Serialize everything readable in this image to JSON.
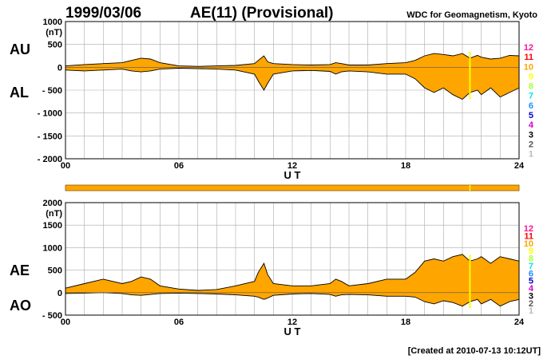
{
  "header": {
    "date": "1999/03/06",
    "title": "AE(11) (Provisional)",
    "source": "WDC for Geomagnetism, Kyoto"
  },
  "footer": {
    "created": "[Created at 2010-07-13 10:12UT]"
  },
  "colors": {
    "fill": "#ffa500",
    "outline": "#000000",
    "grid": "#aaaaaa",
    "marker": "#ffff00"
  },
  "station_legend": [
    {
      "label": "12",
      "color": "#ff1493"
    },
    {
      "label": "11",
      "color": "#ff0000"
    },
    {
      "label": "10",
      "color": "#ffa500"
    },
    {
      "label": "9",
      "color": "#ffff00"
    },
    {
      "label": "8",
      "color": "#adff2f"
    },
    {
      "label": "7",
      "color": "#00e5ee"
    },
    {
      "label": "6",
      "color": "#1e90ff"
    },
    {
      "label": "5",
      "color": "#0000cd"
    },
    {
      "label": "4",
      "color": "#d100d1"
    },
    {
      "label": "3",
      "color": "#000000"
    },
    {
      "label": "2",
      "color": "#555555"
    },
    {
      "label": "1",
      "color": "#bbbbbb"
    }
  ],
  "chart_data": [
    {
      "type": "area",
      "upper_label": "AU",
      "lower_label": "AL",
      "unit_label": "(nT)",
      "xlabel": "U T",
      "xlim": [
        0,
        24
      ],
      "ylim": [
        -2000,
        1000
      ],
      "x_ticks": [
        "00",
        "06",
        "12",
        "18",
        "24"
      ],
      "y_ticks": [
        "1000",
        "500",
        "0",
        "- 500",
        "- 1000",
        "- 1500",
        "- 2000"
      ],
      "grid": true,
      "marker_hour": 21.4,
      "x": [
        0,
        1,
        2,
        3,
        3.5,
        4,
        4.5,
        5,
        6,
        7,
        8,
        9,
        10,
        10.2,
        10.5,
        10.7,
        11,
        12,
        13,
        14,
        14.3,
        14.6,
        15,
        16,
        17,
        18,
        18.5,
        19,
        19.5,
        20,
        20.5,
        21,
        21.4,
        21.8,
        22,
        22.5,
        23,
        23.5,
        24
      ],
      "upper": [
        30,
        60,
        80,
        100,
        150,
        200,
        180,
        100,
        30,
        20,
        30,
        40,
        80,
        150,
        250,
        120,
        80,
        60,
        50,
        60,
        100,
        80,
        50,
        50,
        80,
        100,
        150,
        250,
        300,
        280,
        250,
        300,
        200,
        260,
        220,
        180,
        200,
        260,
        250
      ],
      "lower": [
        -60,
        -80,
        -60,
        -40,
        -80,
        -100,
        -80,
        -40,
        -20,
        -30,
        -40,
        -60,
        -150,
        -300,
        -500,
        -350,
        -150,
        -80,
        -70,
        -90,
        -150,
        -100,
        -80,
        -100,
        -150,
        -150,
        -250,
        -450,
        -550,
        -450,
        -600,
        -700,
        -550,
        -500,
        -600,
        -450,
        -650,
        -550,
        -450
      ]
    },
    {
      "type": "area",
      "upper_label": "AE",
      "lower_label": "AO",
      "unit_label": "(nT)",
      "xlabel": "U T",
      "xlim": [
        0,
        24
      ],
      "ylim": [
        -500,
        2000
      ],
      "x_ticks": [
        "00",
        "06",
        "12",
        "18",
        "24"
      ],
      "y_ticks": [
        "2000",
        "1500",
        "1000",
        "500",
        "0",
        "- 500"
      ],
      "grid": true,
      "marker_hour": 21.4,
      "x": [
        0,
        1,
        2,
        3,
        3.5,
        4,
        4.5,
        5,
        6,
        7,
        8,
        9,
        10,
        10.2,
        10.5,
        10.7,
        11,
        12,
        13,
        14,
        14.3,
        14.6,
        15,
        16,
        17,
        18,
        18.5,
        19,
        19.5,
        20,
        20.5,
        21,
        21.4,
        21.8,
        22,
        22.5,
        23,
        23.5,
        24
      ],
      "upper": [
        100,
        200,
        300,
        200,
        250,
        350,
        300,
        150,
        80,
        50,
        70,
        150,
        250,
        450,
        650,
        400,
        200,
        150,
        150,
        200,
        300,
        250,
        150,
        200,
        300,
        300,
        450,
        700,
        750,
        700,
        800,
        850,
        700,
        750,
        800,
        650,
        800,
        750,
        700
      ],
      "lower": [
        -20,
        -10,
        0,
        -20,
        -50,
        -60,
        -40,
        -20,
        -10,
        -20,
        -30,
        -50,
        -80,
        -100,
        -150,
        -120,
        -60,
        -30,
        -20,
        -40,
        -80,
        -50,
        -40,
        -50,
        -80,
        -80,
        -100,
        -200,
        -250,
        -180,
        -220,
        -300,
        -200,
        -150,
        -250,
        -150,
        -300,
        -200,
        -150
      ]
    }
  ]
}
